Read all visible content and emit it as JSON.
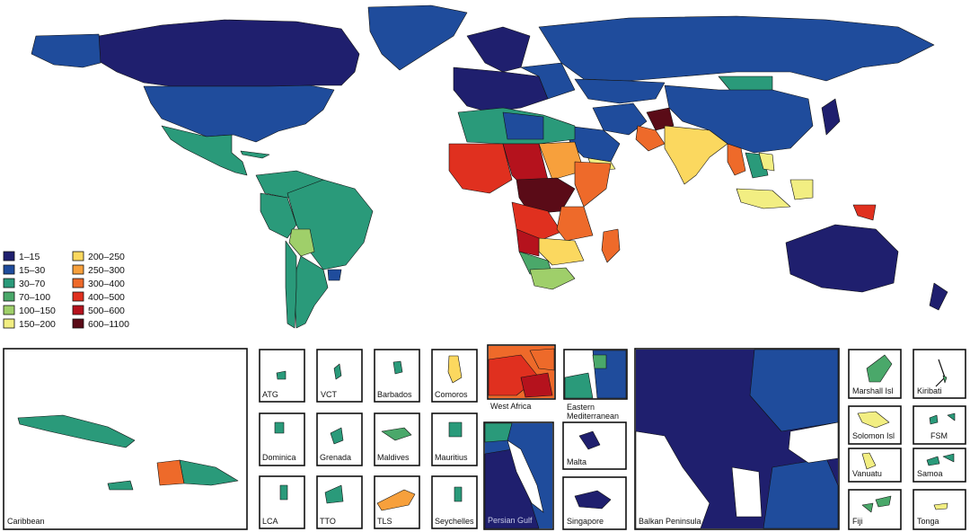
{
  "palette": {
    "1-15": "#1f1f6e",
    "15-30": "#1f4c9c",
    "30-70": "#2a9a7a",
    "70-100": "#4aa86a",
    "100-150": "#9fcf6a",
    "150-200": "#f2ee82",
    "200-250": "#fbd85f",
    "250-300": "#f7a03c",
    "300-400": "#ee6a2a",
    "400-500": "#e0301f",
    "500-600": "#b5121d",
    "600-1100": "#5a0b17"
  },
  "legend": {
    "items": [
      {
        "label": "1–15",
        "key": "1-15"
      },
      {
        "label": "15–30",
        "key": "15-30"
      },
      {
        "label": "30–70",
        "key": "30-70"
      },
      {
        "label": "70–100",
        "key": "70-100"
      },
      {
        "label": "100–150",
        "key": "100-150"
      },
      {
        "label": "150–200",
        "key": "150-200"
      },
      {
        "label": "200–250",
        "key": "200-250"
      },
      {
        "label": "250–300",
        "key": "250-300"
      },
      {
        "label": "300–400",
        "key": "300-400"
      },
      {
        "label": "400–500",
        "key": "400-500"
      },
      {
        "label": "500–600",
        "key": "500-600"
      },
      {
        "label": "600–1100",
        "key": "600-1100"
      }
    ]
  },
  "insets": {
    "caribbean": "Caribbean",
    "atg": "ATG",
    "vct": "VCT",
    "barbados": "Barbados",
    "comoros": "Comoros",
    "dominica": "Dominica",
    "grenada": "Grenada",
    "maldives": "Maldives",
    "mauritius": "Mauritius",
    "lca": "LCA",
    "tto": "TTO",
    "tls": "TLS",
    "seychelles": "Seychelles",
    "west_africa": "West Africa",
    "eastern_med_1": "Eastern",
    "eastern_med_2": "Mediterranean",
    "persian_gulf": "Persian Gulf",
    "malta": "Malta",
    "singapore": "Singapore",
    "balkan": "Balkan Peninsula",
    "marshall": "Marshall Isl",
    "kiribati": "Kiribati",
    "solomon": "Solomon Isl",
    "fsm": "FSM",
    "vanuatu": "Vanuatu",
    "samoa": "Samoa",
    "fiji": "Fiji",
    "tonga": "Tonga"
  }
}
